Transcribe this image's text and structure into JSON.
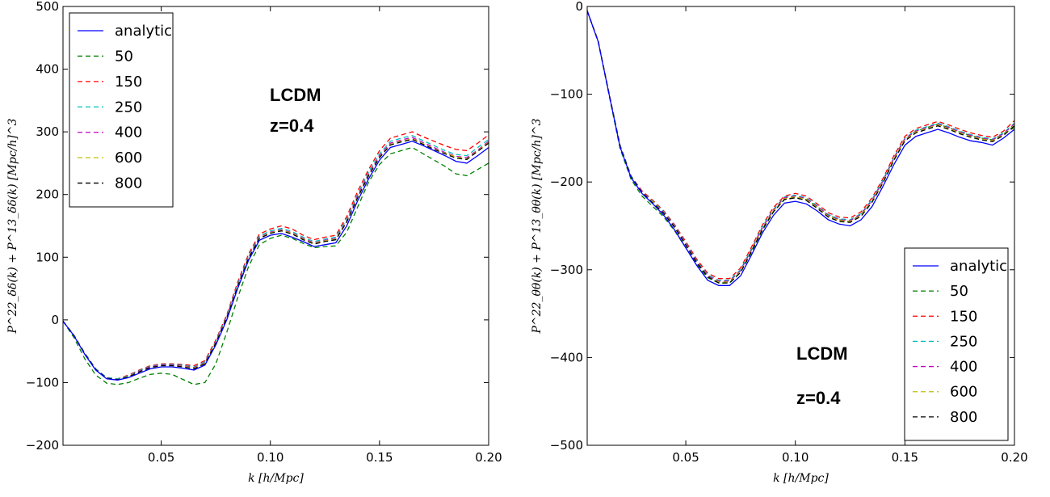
{
  "chart_data": [
    {
      "type": "line",
      "title": "",
      "xlabel": "k [h/Mpc]",
      "ylabel": "P^22_δδ(k) + P^13_δδ(k) [Mpc/h]^3",
      "xlim": [
        0.005,
        0.2
      ],
      "ylim": [
        -200,
        500
      ],
      "x_ticks": [
        0.05,
        0.1,
        0.15,
        0.2
      ],
      "x_tick_labels": [
        "0.05",
        "0.10",
        "0.15",
        "0.20"
      ],
      "y_ticks": [
        -200,
        -100,
        0,
        100,
        200,
        300,
        400,
        500
      ],
      "y_tick_labels": [
        "−200",
        "−100",
        "0",
        "100",
        "200",
        "300",
        "400",
        "500"
      ],
      "grid": false,
      "legend_position": "top-left",
      "annotations": [
        "LCDM",
        "z=0.4"
      ],
      "x": [
        0.005,
        0.01,
        0.015,
        0.02,
        0.025,
        0.03,
        0.035,
        0.04,
        0.045,
        0.05,
        0.055,
        0.06,
        0.065,
        0.07,
        0.075,
        0.08,
        0.085,
        0.09,
        0.095,
        0.1,
        0.105,
        0.11,
        0.115,
        0.12,
        0.125,
        0.13,
        0.135,
        0.14,
        0.145,
        0.15,
        0.155,
        0.16,
        0.165,
        0.17,
        0.175,
        0.18,
        0.185,
        0.19,
        0.195,
        0.2
      ],
      "series": [
        {
          "name": "analytic",
          "color": "#0000ff",
          "dash": "solid",
          "values": [
            -2,
            -25,
            -55,
            -80,
            -94,
            -96,
            -92,
            -85,
            -78,
            -75,
            -75,
            -77,
            -80,
            -72,
            -40,
            0,
            50,
            95,
            127,
            135,
            138,
            132,
            125,
            117,
            120,
            123,
            150,
            190,
            225,
            255,
            275,
            280,
            285,
            278,
            270,
            262,
            253,
            250,
            262,
            275
          ]
        },
        {
          "name": "50",
          "color": "#008000",
          "dash": "dashed",
          "values": [
            -2,
            -28,
            -62,
            -88,
            -101,
            -103,
            -100,
            -93,
            -87,
            -85,
            -87,
            -95,
            -103,
            -100,
            -70,
            -20,
            35,
            85,
            120,
            130,
            135,
            130,
            122,
            115,
            117,
            118,
            140,
            180,
            220,
            248,
            265,
            270,
            275,
            265,
            255,
            245,
            233,
            230,
            240,
            250
          ]
        },
        {
          "name": "150",
          "color": "#ff0000",
          "dash": "dashed",
          "values": [
            -2,
            -24,
            -53,
            -78,
            -92,
            -94,
            -88,
            -80,
            -73,
            -70,
            -70,
            -71,
            -73,
            -65,
            -32,
            8,
            60,
            105,
            137,
            145,
            150,
            145,
            135,
            128,
            132,
            135,
            165,
            205,
            240,
            270,
            290,
            295,
            300,
            292,
            285,
            278,
            272,
            270,
            282,
            295
          ]
        },
        {
          "name": "250",
          "color": "#00bfbf",
          "dash": "dashed",
          "values": [
            -2,
            -24,
            -53,
            -78,
            -92,
            -94,
            -89,
            -81,
            -74,
            -71,
            -71,
            -72,
            -75,
            -67,
            -34,
            6,
            57,
            102,
            134,
            142,
            146,
            141,
            132,
            125,
            129,
            132,
            161,
            200,
            236,
            265,
            285,
            290,
            294,
            286,
            278,
            270,
            264,
            262,
            275,
            288
          ]
        },
        {
          "name": "400",
          "color": "#bf00bf",
          "dash": "dashed",
          "values": [
            -2,
            -24,
            -54,
            -79,
            -93,
            -95,
            -90,
            -82,
            -75,
            -72,
            -72,
            -73,
            -76,
            -68,
            -35,
            5,
            55,
            100,
            132,
            140,
            144,
            139,
            130,
            123,
            127,
            130,
            158,
            198,
            233,
            262,
            282,
            287,
            291,
            283,
            275,
            267,
            261,
            259,
            271,
            285
          ]
        },
        {
          "name": "600",
          "color": "#bfbf00",
          "dash": "dashed",
          "values": [
            -2,
            -24,
            -54,
            -79,
            -93,
            -95,
            -90,
            -83,
            -76,
            -73,
            -73,
            -74,
            -77,
            -69,
            -36,
            4,
            54,
            99,
            131,
            139,
            143,
            138,
            129,
            122,
            126,
            129,
            157,
            196,
            231,
            260,
            280,
            285,
            289,
            281,
            273,
            266,
            260,
            257,
            270,
            283
          ]
        },
        {
          "name": "800",
          "color": "#000000",
          "dash": "dashed",
          "values": [
            -2,
            -25,
            -54,
            -79,
            -93,
            -95,
            -91,
            -83,
            -76,
            -73,
            -73,
            -75,
            -78,
            -70,
            -37,
            3,
            53,
            98,
            130,
            138,
            142,
            137,
            128,
            121,
            125,
            128,
            156,
            195,
            230,
            259,
            279,
            284,
            288,
            280,
            272,
            265,
            258,
            256,
            269,
            282
          ]
        }
      ]
    },
    {
      "type": "line",
      "title": "",
      "xlabel": "k [h/Mpc]",
      "ylabel": "P^22_θθ(k) + P^13_θθ(k) [Mpc/h]^3",
      "xlim": [
        0.005,
        0.2
      ],
      "ylim": [
        -500,
        0
      ],
      "x_ticks": [
        0.05,
        0.1,
        0.15,
        0.2
      ],
      "x_tick_labels": [
        "0.05",
        "0.10",
        "0.15",
        "0.20"
      ],
      "y_ticks": [
        -500,
        -400,
        -300,
        -200,
        -100,
        0
      ],
      "y_tick_labels": [
        "−500",
        "−400",
        "−300",
        "−200",
        "−100",
        "0"
      ],
      "grid": false,
      "legend_position": "bottom-right",
      "annotations": [
        "LCDM",
        "z=0.4"
      ],
      "x": [
        0.005,
        0.01,
        0.015,
        0.02,
        0.025,
        0.03,
        0.035,
        0.04,
        0.045,
        0.05,
        0.055,
        0.06,
        0.065,
        0.07,
        0.075,
        0.08,
        0.085,
        0.09,
        0.095,
        0.1,
        0.105,
        0.11,
        0.115,
        0.12,
        0.125,
        0.13,
        0.135,
        0.14,
        0.145,
        0.15,
        0.155,
        0.16,
        0.165,
        0.17,
        0.175,
        0.18,
        0.185,
        0.19,
        0.195,
        0.2
      ],
      "series": [
        {
          "name": "analytic",
          "color": "#0000ff",
          "dash": "solid",
          "values": [
            -5,
            -40,
            -100,
            -160,
            -195,
            -213,
            -225,
            -238,
            -255,
            -275,
            -295,
            -312,
            -318,
            -318,
            -307,
            -283,
            -258,
            -238,
            -224,
            -222,
            -225,
            -233,
            -243,
            -248,
            -250,
            -243,
            -228,
            -205,
            -180,
            -158,
            -148,
            -144,
            -140,
            -144,
            -149,
            -153,
            -155,
            -158,
            -150,
            -140
          ]
        },
        {
          "name": "50",
          "color": "#008000",
          "dash": "dashed",
          "values": [
            -5,
            -40,
            -101,
            -162,
            -197,
            -216,
            -228,
            -240,
            -256,
            -275,
            -294,
            -309,
            -315,
            -315,
            -303,
            -280,
            -255,
            -234,
            -220,
            -218,
            -220,
            -228,
            -238,
            -243,
            -245,
            -237,
            -222,
            -200,
            -175,
            -152,
            -142,
            -138,
            -134,
            -138,
            -143,
            -147,
            -150,
            -152,
            -145,
            -138
          ]
        },
        {
          "name": "150",
          "color": "#ff0000",
          "dash": "dashed",
          "values": [
            -5,
            -39,
            -99,
            -158,
            -193,
            -210,
            -221,
            -233,
            -249,
            -268,
            -288,
            -304,
            -310,
            -310,
            -298,
            -274,
            -249,
            -229,
            -216,
            -213,
            -216,
            -225,
            -235,
            -240,
            -241,
            -234,
            -218,
            -196,
            -170,
            -148,
            -139,
            -135,
            -131,
            -135,
            -140,
            -144,
            -147,
            -149,
            -142,
            -130
          ]
        },
        {
          "name": "250",
          "color": "#00bfbf",
          "dash": "dashed",
          "values": [
            -5,
            -39,
            -99,
            -158,
            -193,
            -211,
            -222,
            -234,
            -250,
            -270,
            -290,
            -306,
            -312,
            -312,
            -300,
            -276,
            -251,
            -231,
            -217,
            -215,
            -218,
            -227,
            -237,
            -242,
            -243,
            -236,
            -220,
            -198,
            -172,
            -150,
            -141,
            -137,
            -133,
            -137,
            -142,
            -146,
            -149,
            -151,
            -144,
            -133
          ]
        },
        {
          "name": "400",
          "color": "#bf00bf",
          "dash": "dashed",
          "values": [
            -5,
            -39,
            -99,
            -159,
            -194,
            -211,
            -223,
            -235,
            -251,
            -271,
            -291,
            -307,
            -313,
            -313,
            -301,
            -277,
            -252,
            -232,
            -218,
            -216,
            -219,
            -228,
            -238,
            -243,
            -244,
            -237,
            -221,
            -199,
            -173,
            -151,
            -142,
            -138,
            -134,
            -138,
            -143,
            -147,
            -150,
            -152,
            -145,
            -134
          ]
        },
        {
          "name": "600",
          "color": "#bfbf00",
          "dash": "dashed",
          "values": [
            -5,
            -39,
            -99,
            -159,
            -194,
            -212,
            -223,
            -236,
            -252,
            -272,
            -292,
            -308,
            -314,
            -314,
            -302,
            -278,
            -253,
            -233,
            -219,
            -217,
            -220,
            -229,
            -239,
            -244,
            -245,
            -238,
            -222,
            -200,
            -174,
            -152,
            -143,
            -139,
            -135,
            -139,
            -144,
            -148,
            -151,
            -153,
            -146,
            -135
          ]
        },
        {
          "name": "800",
          "color": "#000000",
          "dash": "dashed",
          "values": [
            -5,
            -40,
            -100,
            -159,
            -194,
            -212,
            -224,
            -236,
            -252,
            -272,
            -292,
            -308,
            -315,
            -315,
            -303,
            -279,
            -254,
            -234,
            -220,
            -218,
            -221,
            -230,
            -240,
            -245,
            -246,
            -239,
            -223,
            -201,
            -175,
            -153,
            -144,
            -140,
            -136,
            -140,
            -145,
            -149,
            -152,
            -154,
            -147,
            -136
          ]
        }
      ]
    }
  ]
}
